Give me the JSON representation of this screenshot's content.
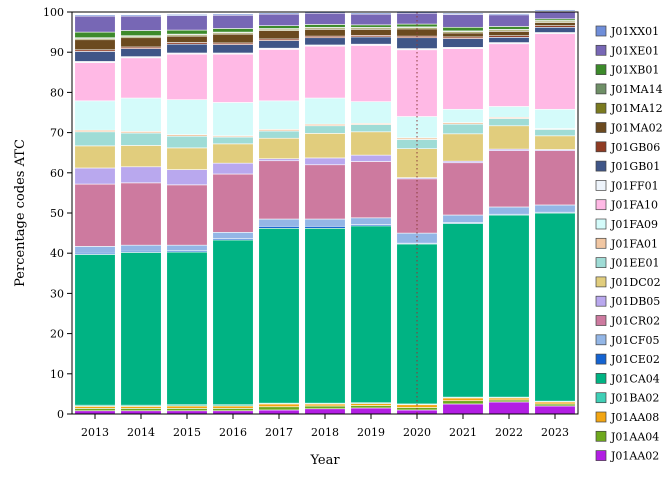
{
  "chart_data": {
    "type": "bar",
    "stacked": true,
    "xlabel": "Year",
    "ylabel": "Percentage codes ATC",
    "ylim": [
      0,
      100
    ],
    "yticks": [
      0,
      10,
      20,
      30,
      40,
      50,
      60,
      70,
      80,
      90,
      100
    ],
    "grid": false,
    "legend_position": "right",
    "reference_line": {
      "x": "2020",
      "style": "dotted",
      "color": "#8b3a3a"
    },
    "categories": [
      "2013",
      "2014",
      "2015",
      "2016",
      "2017",
      "2018",
      "2019",
      "2020",
      "2021",
      "2022",
      "2023"
    ],
    "series": [
      {
        "name": "J01AA02",
        "color": "#b21ee3",
        "values": [
          0.8,
          0.8,
          0.8,
          0.8,
          1.0,
          1.3,
          1.5,
          1.0,
          2.5,
          3.0,
          2.0
        ]
      },
      {
        "name": "J01AA04",
        "color": "#6ea81d",
        "values": [
          0.6,
          0.6,
          0.6,
          0.6,
          0.8,
          0.7,
          0.6,
          0.6,
          0.8,
          0.5,
          0.5
        ]
      },
      {
        "name": "J01AA08",
        "color": "#f2a512",
        "values": [
          0.5,
          0.5,
          0.6,
          0.6,
          0.7,
          0.5,
          0.5,
          0.7,
          0.7,
          0.5,
          0.5
        ]
      },
      {
        "name": "J01BA02",
        "color": "#3fcfb6",
        "values": [
          0.3,
          0.3,
          0.3,
          0.3,
          0.2,
          0.2,
          0.2,
          0.2,
          0.2,
          0.2,
          0.2
        ]
      },
      {
        "name": "J01CA04",
        "color": "#00b383",
        "values": [
          37.5,
          38.0,
          38.0,
          41.0,
          43.5,
          43.5,
          44.0,
          39.8,
          43.2,
          45.3,
          46.8
        ]
      },
      {
        "name": "J01CE02",
        "color": "#1463d1",
        "values": [
          0.3,
          0.3,
          0.3,
          0.3,
          0.5,
          0.5,
          0.3,
          0.2,
          0.2,
          0.2,
          0.2
        ]
      },
      {
        "name": "J01CF05",
        "color": "#93b6e6",
        "values": [
          1.7,
          1.5,
          1.4,
          1.6,
          1.8,
          1.8,
          1.7,
          2.5,
          1.9,
          1.8,
          1.8
        ]
      },
      {
        "name": "J01CR02",
        "color": "#cd7a9f",
        "values": [
          15.5,
          15.5,
          15.0,
          14.5,
          14.5,
          13.5,
          14.0,
          13.5,
          13.0,
          14.0,
          13.5
        ]
      },
      {
        "name": "J01DB05",
        "color": "#b9a8ee",
        "values": [
          4.0,
          4.0,
          3.8,
          2.7,
          0.5,
          1.7,
          1.6,
          0.3,
          0.4,
          0.4,
          0.3
        ]
      },
      {
        "name": "J01DC02",
        "color": "#e1cd7d",
        "values": [
          5.5,
          5.3,
          5.4,
          4.8,
          5.1,
          6.1,
          5.8,
          7.2,
          6.8,
          5.8,
          3.4
        ]
      },
      {
        "name": "J01EE01",
        "color": "#9fdcd6",
        "values": [
          3.5,
          3.1,
          2.9,
          1.7,
          1.8,
          1.9,
          1.8,
          2.3,
          2.4,
          1.8,
          1.6
        ]
      },
      {
        "name": "J01FA01",
        "color": "#f1c7a3",
        "values": [
          0.4,
          0.4,
          0.4,
          0.3,
          0.4,
          0.4,
          0.3,
          0.4,
          0.4,
          0.3,
          0.2
        ]
      },
      {
        "name": "J01FA09",
        "color": "#d4fbfa",
        "values": [
          7.3,
          8.3,
          8.7,
          8.3,
          7.1,
          6.5,
          5.4,
          5.3,
          3.3,
          2.7,
          4.8
        ]
      },
      {
        "name": "J01FA10",
        "color": "#ffb9e5",
        "values": [
          9.5,
          10.0,
          11.3,
          12.0,
          12.8,
          12.9,
          14.0,
          16.6,
          15.1,
          15.6,
          18.8
        ]
      },
      {
        "name": "J01FF01",
        "color": "#eef4fb",
        "values": [
          0.3,
          0.3,
          0.3,
          0.3,
          0.3,
          0.3,
          0.3,
          0.3,
          0.3,
          0.3,
          0.3
        ]
      },
      {
        "name": "J01GB01",
        "color": "#3f5587",
        "values": [
          2.5,
          2.0,
          2.2,
          2.1,
          1.9,
          1.8,
          1.8,
          2.7,
          2.2,
          1.3,
          1.3
        ]
      },
      {
        "name": "J01GB06",
        "color": "#8f3b23",
        "values": [
          0.4,
          0.4,
          0.4,
          0.4,
          0.4,
          0.4,
          0.4,
          0.4,
          0.4,
          0.4,
          0.4
        ]
      },
      {
        "name": "J01MA02",
        "color": "#6b4a1f",
        "values": [
          2.5,
          2.3,
          1.6,
          2.2,
          2.1,
          1.7,
          1.5,
          1.8,
          1.0,
          1.1,
          0.8
        ]
      },
      {
        "name": "J01MA12",
        "color": "#7a7a1f",
        "values": [
          0.3,
          0.3,
          0.3,
          0.3,
          0.3,
          0.3,
          0.3,
          0.3,
          0.3,
          0.3,
          0.3
        ]
      },
      {
        "name": "J01MA14",
        "color": "#6e8f66",
        "values": [
          0.2,
          0.2,
          0.2,
          0.2,
          0.2,
          0.2,
          0.2,
          0.2,
          0.2,
          0.2,
          0.2
        ]
      },
      {
        "name": "J01XB01",
        "color": "#3c8a2a",
        "values": [
          1.4,
          1.3,
          1.0,
          0.9,
          0.7,
          0.7,
          0.6,
          0.7,
          0.9,
          0.7,
          0.4
        ]
      },
      {
        "name": "J01XE01",
        "color": "#7767b5",
        "values": [
          4.0,
          3.6,
          3.6,
          3.3,
          2.9,
          2.8,
          2.7,
          2.7,
          3.2,
          2.9,
          1.9
        ]
      },
      {
        "name": "J01XX01",
        "color": "#6f8ed9",
        "values": [
          0.3,
          0.3,
          0.3,
          0.3,
          0.3,
          0.3,
          0.3,
          0.3,
          0.3,
          0.3,
          0.3
        ]
      }
    ]
  }
}
